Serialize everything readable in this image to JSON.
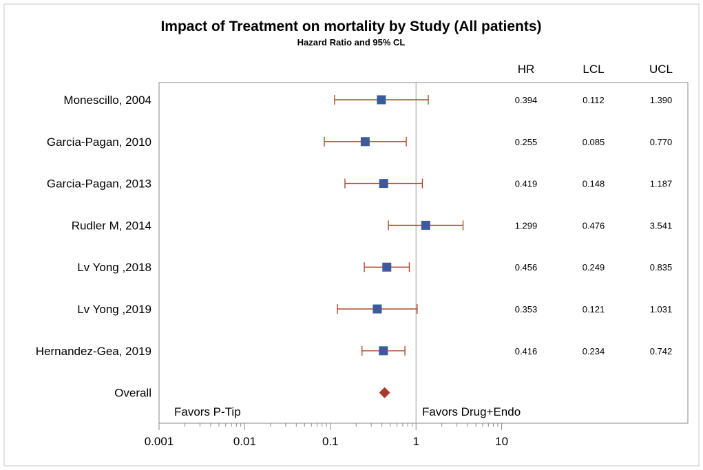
{
  "chart_data": {
    "type": "forest",
    "title": "Impact of Treatment on mortality by Study (All patients)",
    "subtitle": "Hazard Ratio and 95% CL",
    "column_headers": [
      "HR",
      "LCL",
      "UCL"
    ],
    "studies": [
      {
        "label": "Monescillo, 2004",
        "hr": 0.394,
        "lcl": 0.112,
        "ucl": 1.39,
        "hr_text": "0.394",
        "lcl_text": "0.112",
        "ucl_text": "1.390"
      },
      {
        "label": "Garcia-Pagan, 2010",
        "hr": 0.255,
        "lcl": 0.085,
        "ucl": 0.77,
        "hr_text": "0.255",
        "lcl_text": "0.085",
        "ucl_text": "0.770"
      },
      {
        "label": "Garcia-Pagan, 2013",
        "hr": 0.419,
        "lcl": 0.148,
        "ucl": 1.187,
        "hr_text": "0.419",
        "lcl_text": "0.148",
        "ucl_text": "1.187"
      },
      {
        "label": "Rudler M, 2014",
        "hr": 1.299,
        "lcl": 0.476,
        "ucl": 3.541,
        "hr_text": "1.299",
        "lcl_text": "0.476",
        "ucl_text": "3.541"
      },
      {
        "label": "Lv Yong ,2018",
        "hr": 0.456,
        "lcl": 0.249,
        "ucl": 0.835,
        "hr_text": "0.456",
        "lcl_text": "0.249",
        "ucl_text": "0.835"
      },
      {
        "label": "Lv Yong ,2019",
        "hr": 0.353,
        "lcl": 0.121,
        "ucl": 1.031,
        "hr_text": "0.353",
        "lcl_text": "0.121",
        "ucl_text": "1.031"
      },
      {
        "label": "Hernandez-Gea, 2019",
        "hr": 0.416,
        "lcl": 0.234,
        "ucl": 0.742,
        "hr_text": "0.416",
        "lcl_text": "0.234",
        "ucl_text": "0.742"
      }
    ],
    "overall": {
      "label": "Overall",
      "hr": 0.43
    },
    "x_axis": {
      "scale": "log",
      "range": [
        0.001,
        10
      ],
      "ticks": [
        0.001,
        0.01,
        0.1,
        1,
        10
      ],
      "tick_labels": [
        "0.001",
        "0.01",
        "0.1",
        "1",
        "10"
      ],
      "reference_line": 1
    },
    "annotations": {
      "left": "Favors P-Tip",
      "right": "Favors Drug+Endo"
    },
    "colors": {
      "marker": "#3f5a9a",
      "error_bar": "#b14a2a",
      "overall_marker": "#a83a2a",
      "axis": "#8a8a8a",
      "reference_line": "#a0a0a0"
    }
  }
}
